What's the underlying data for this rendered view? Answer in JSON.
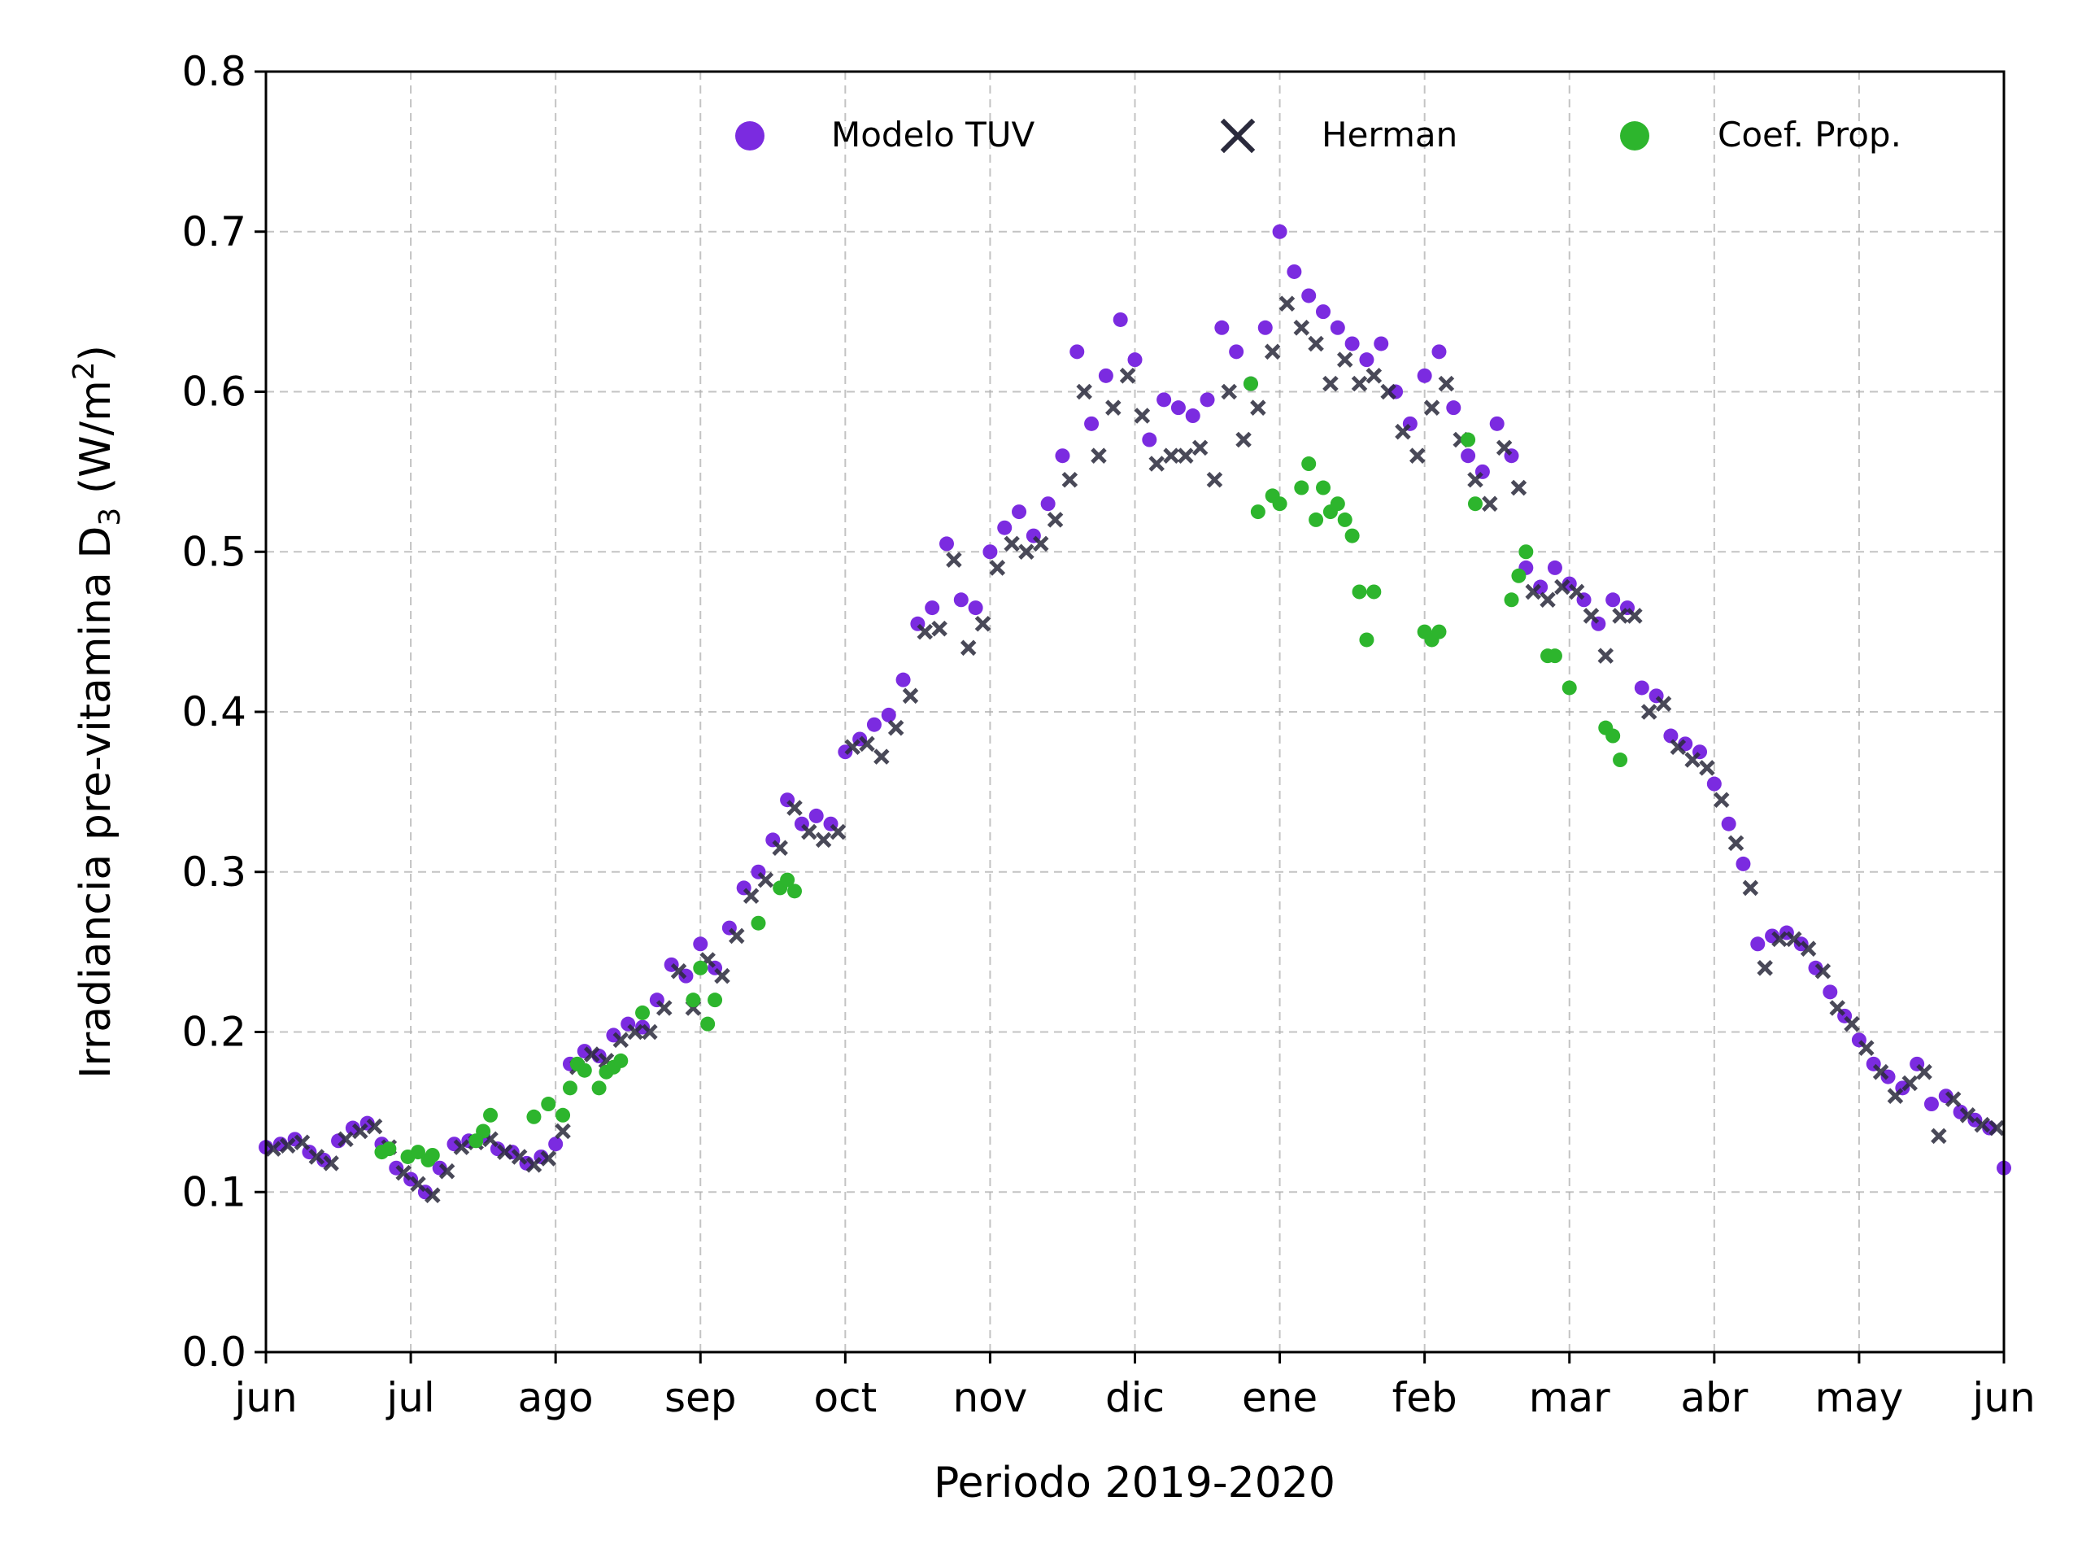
{
  "chart_data": {
    "type": "scatter",
    "xlabel": "Periodo 2019-2020",
    "ylabel": "Irradiancia pre-vitamina D3 (W/m2)",
    "ylabel_parts": {
      "main": "Irradiancia pre-vitamina D",
      "sub": "3",
      "unit_open": " (W/m",
      "sup": "2",
      "unit_close": ")"
    },
    "ylim": [
      0.0,
      0.8
    ],
    "yticks": [
      "0.0",
      "0.1",
      "0.2",
      "0.3",
      "0.4",
      "0.5",
      "0.6",
      "0.7",
      "0.8"
    ],
    "xlim": [
      0,
      12
    ],
    "xticks": [
      "jun",
      "jul",
      "ago",
      "sep",
      "oct",
      "nov",
      "dic",
      "ene",
      "feb",
      "mar",
      "abr",
      "may",
      "jun"
    ],
    "grid": true,
    "legend_position": "top-right",
    "series": [
      {
        "name": "Modelo TUV",
        "marker": "circle",
        "color": "#7b2be0",
        "points": [
          [
            0.0,
            0.128
          ],
          [
            0.1,
            0.13
          ],
          [
            0.2,
            0.133
          ],
          [
            0.3,
            0.125
          ],
          [
            0.4,
            0.12
          ],
          [
            0.5,
            0.132
          ],
          [
            0.6,
            0.14
          ],
          [
            0.7,
            0.143
          ],
          [
            0.8,
            0.13
          ],
          [
            0.9,
            0.115
          ],
          [
            1.0,
            0.108
          ],
          [
            1.1,
            0.1
          ],
          [
            1.2,
            0.115
          ],
          [
            1.3,
            0.13
          ],
          [
            1.4,
            0.132
          ],
          [
            1.5,
            0.135
          ],
          [
            1.6,
            0.127
          ],
          [
            1.7,
            0.125
          ],
          [
            1.8,
            0.118
          ],
          [
            1.9,
            0.122
          ],
          [
            2.0,
            0.13
          ],
          [
            2.1,
            0.18
          ],
          [
            2.2,
            0.188
          ],
          [
            2.3,
            0.185
          ],
          [
            2.4,
            0.198
          ],
          [
            2.5,
            0.205
          ],
          [
            2.6,
            0.203
          ],
          [
            2.7,
            0.22
          ],
          [
            2.8,
            0.242
          ],
          [
            2.9,
            0.235
          ],
          [
            3.0,
            0.255
          ],
          [
            3.1,
            0.24
          ],
          [
            3.2,
            0.265
          ],
          [
            3.3,
            0.29
          ],
          [
            3.4,
            0.3
          ],
          [
            3.5,
            0.32
          ],
          [
            3.6,
            0.345
          ],
          [
            3.7,
            0.33
          ],
          [
            3.8,
            0.335
          ],
          [
            3.9,
            0.33
          ],
          [
            4.0,
            0.375
          ],
          [
            4.1,
            0.383
          ],
          [
            4.2,
            0.392
          ],
          [
            4.3,
            0.398
          ],
          [
            4.4,
            0.42
          ],
          [
            4.5,
            0.455
          ],
          [
            4.6,
            0.465
          ],
          [
            4.7,
            0.505
          ],
          [
            4.8,
            0.47
          ],
          [
            4.9,
            0.465
          ],
          [
            5.0,
            0.5
          ],
          [
            5.1,
            0.515
          ],
          [
            5.2,
            0.525
          ],
          [
            5.3,
            0.51
          ],
          [
            5.4,
            0.53
          ],
          [
            5.5,
            0.56
          ],
          [
            5.6,
            0.625
          ],
          [
            5.7,
            0.58
          ],
          [
            5.8,
            0.61
          ],
          [
            5.9,
            0.645
          ],
          [
            6.0,
            0.62
          ],
          [
            6.1,
            0.57
          ],
          [
            6.2,
            0.595
          ],
          [
            6.3,
            0.59
          ],
          [
            6.4,
            0.585
          ],
          [
            6.5,
            0.595
          ],
          [
            6.6,
            0.64
          ],
          [
            6.7,
            0.625
          ],
          [
            6.8,
            0.605
          ],
          [
            6.9,
            0.64
          ],
          [
            7.0,
            0.7
          ],
          [
            7.1,
            0.675
          ],
          [
            7.2,
            0.66
          ],
          [
            7.3,
            0.65
          ],
          [
            7.4,
            0.64
          ],
          [
            7.5,
            0.63
          ],
          [
            7.6,
            0.62
          ],
          [
            7.7,
            0.63
          ],
          [
            7.8,
            0.6
          ],
          [
            7.9,
            0.58
          ],
          [
            8.0,
            0.61
          ],
          [
            8.1,
            0.625
          ],
          [
            8.2,
            0.59
          ],
          [
            8.3,
            0.56
          ],
          [
            8.4,
            0.55
          ],
          [
            8.5,
            0.58
          ],
          [
            8.6,
            0.56
          ],
          [
            8.7,
            0.49
          ],
          [
            8.8,
            0.478
          ],
          [
            8.9,
            0.49
          ],
          [
            9.0,
            0.48
          ],
          [
            9.1,
            0.47
          ],
          [
            9.2,
            0.455
          ],
          [
            9.3,
            0.47
          ],
          [
            9.4,
            0.465
          ],
          [
            9.5,
            0.415
          ],
          [
            9.6,
            0.41
          ],
          [
            9.7,
            0.385
          ],
          [
            9.8,
            0.38
          ],
          [
            9.9,
            0.375
          ],
          [
            10.0,
            0.355
          ],
          [
            10.1,
            0.33
          ],
          [
            10.2,
            0.305
          ],
          [
            10.3,
            0.255
          ],
          [
            10.4,
            0.26
          ],
          [
            10.5,
            0.262
          ],
          [
            10.6,
            0.255
          ],
          [
            10.7,
            0.24
          ],
          [
            10.8,
            0.225
          ],
          [
            10.9,
            0.21
          ],
          [
            11.0,
            0.195
          ],
          [
            11.1,
            0.18
          ],
          [
            11.2,
            0.172
          ],
          [
            11.3,
            0.165
          ],
          [
            11.4,
            0.18
          ],
          [
            11.5,
            0.155
          ],
          [
            11.6,
            0.16
          ],
          [
            11.7,
            0.15
          ],
          [
            11.8,
            0.145
          ],
          [
            11.9,
            0.14
          ],
          [
            12.0,
            0.115
          ]
        ]
      },
      {
        "name": "Herman",
        "marker": "x",
        "color": "#2a2a3c",
        "points": [
          [
            0.05,
            0.127
          ],
          [
            0.15,
            0.129
          ],
          [
            0.25,
            0.131
          ],
          [
            0.35,
            0.122
          ],
          [
            0.45,
            0.118
          ],
          [
            0.55,
            0.133
          ],
          [
            0.65,
            0.138
          ],
          [
            0.75,
            0.141
          ],
          [
            0.85,
            0.128
          ],
          [
            0.95,
            0.112
          ],
          [
            1.05,
            0.105
          ],
          [
            1.15,
            0.098
          ],
          [
            1.25,
            0.113
          ],
          [
            1.35,
            0.128
          ],
          [
            1.45,
            0.131
          ],
          [
            1.55,
            0.133
          ],
          [
            1.65,
            0.125
          ],
          [
            1.75,
            0.122
          ],
          [
            1.85,
            0.117
          ],
          [
            1.95,
            0.121
          ],
          [
            2.05,
            0.138
          ],
          [
            2.15,
            0.178
          ],
          [
            2.25,
            0.186
          ],
          [
            2.35,
            0.182
          ],
          [
            2.45,
            0.195
          ],
          [
            2.55,
            0.2
          ],
          [
            2.65,
            0.2
          ],
          [
            2.75,
            0.215
          ],
          [
            2.85,
            0.238
          ],
          [
            2.95,
            0.215
          ],
          [
            3.05,
            0.245
          ],
          [
            3.15,
            0.235
          ],
          [
            3.25,
            0.26
          ],
          [
            3.35,
            0.285
          ],
          [
            3.45,
            0.295
          ],
          [
            3.55,
            0.315
          ],
          [
            3.65,
            0.34
          ],
          [
            3.75,
            0.325
          ],
          [
            3.85,
            0.32
          ],
          [
            3.95,
            0.325
          ],
          [
            4.05,
            0.378
          ],
          [
            4.15,
            0.38
          ],
          [
            4.25,
            0.372
          ],
          [
            4.35,
            0.39
          ],
          [
            4.45,
            0.41
          ],
          [
            4.55,
            0.45
          ],
          [
            4.65,
            0.452
          ],
          [
            4.75,
            0.495
          ],
          [
            4.85,
            0.44
          ],
          [
            4.95,
            0.455
          ],
          [
            5.05,
            0.49
          ],
          [
            5.15,
            0.505
          ],
          [
            5.25,
            0.5
          ],
          [
            5.35,
            0.505
          ],
          [
            5.45,
            0.52
          ],
          [
            5.55,
            0.545
          ],
          [
            5.65,
            0.6
          ],
          [
            5.75,
            0.56
          ],
          [
            5.85,
            0.59
          ],
          [
            5.95,
            0.61
          ],
          [
            6.05,
            0.585
          ],
          [
            6.15,
            0.555
          ],
          [
            6.25,
            0.56
          ],
          [
            6.35,
            0.56
          ],
          [
            6.45,
            0.565
          ],
          [
            6.55,
            0.545
          ],
          [
            6.65,
            0.6
          ],
          [
            6.75,
            0.57
          ],
          [
            6.85,
            0.59
          ],
          [
            6.95,
            0.625
          ],
          [
            7.05,
            0.655
          ],
          [
            7.15,
            0.64
          ],
          [
            7.25,
            0.63
          ],
          [
            7.35,
            0.605
          ],
          [
            7.45,
            0.62
          ],
          [
            7.55,
            0.605
          ],
          [
            7.65,
            0.61
          ],
          [
            7.75,
            0.6
          ],
          [
            7.85,
            0.575
          ],
          [
            7.95,
            0.56
          ],
          [
            8.05,
            0.59
          ],
          [
            8.15,
            0.605
          ],
          [
            8.25,
            0.57
          ],
          [
            8.35,
            0.545
          ],
          [
            8.45,
            0.53
          ],
          [
            8.55,
            0.565
          ],
          [
            8.65,
            0.54
          ],
          [
            8.75,
            0.475
          ],
          [
            8.85,
            0.47
          ],
          [
            8.95,
            0.478
          ],
          [
            9.05,
            0.475
          ],
          [
            9.15,
            0.46
          ],
          [
            9.25,
            0.435
          ],
          [
            9.35,
            0.46
          ],
          [
            9.45,
            0.46
          ],
          [
            9.55,
            0.4
          ],
          [
            9.65,
            0.405
          ],
          [
            9.75,
            0.378
          ],
          [
            9.85,
            0.37
          ],
          [
            9.95,
            0.365
          ],
          [
            10.05,
            0.345
          ],
          [
            10.15,
            0.318
          ],
          [
            10.25,
            0.29
          ],
          [
            10.35,
            0.24
          ],
          [
            10.45,
            0.258
          ],
          [
            10.55,
            0.258
          ],
          [
            10.65,
            0.252
          ],
          [
            10.75,
            0.238
          ],
          [
            10.85,
            0.215
          ],
          [
            10.95,
            0.205
          ],
          [
            11.05,
            0.19
          ],
          [
            11.15,
            0.175
          ],
          [
            11.25,
            0.16
          ],
          [
            11.35,
            0.168
          ],
          [
            11.45,
            0.175
          ],
          [
            11.55,
            0.135
          ],
          [
            11.65,
            0.158
          ],
          [
            11.75,
            0.148
          ],
          [
            11.85,
            0.142
          ],
          [
            11.95,
            0.14
          ]
        ]
      },
      {
        "name": "Coef. Prop.",
        "marker": "circle",
        "color": "#2db52d",
        "points": [
          [
            0.8,
            0.125
          ],
          [
            0.85,
            0.127
          ],
          [
            0.98,
            0.122
          ],
          [
            1.05,
            0.125
          ],
          [
            1.12,
            0.12
          ],
          [
            1.15,
            0.123
          ],
          [
            1.45,
            0.132
          ],
          [
            1.5,
            0.138
          ],
          [
            1.55,
            0.148
          ],
          [
            1.85,
            0.147
          ],
          [
            1.95,
            0.155
          ],
          [
            2.05,
            0.148
          ],
          [
            2.1,
            0.165
          ],
          [
            2.15,
            0.18
          ],
          [
            2.2,
            0.176
          ],
          [
            2.3,
            0.165
          ],
          [
            2.35,
            0.175
          ],
          [
            2.4,
            0.178
          ],
          [
            2.45,
            0.182
          ],
          [
            2.6,
            0.212
          ],
          [
            2.95,
            0.22
          ],
          [
            3.0,
            0.24
          ],
          [
            3.05,
            0.205
          ],
          [
            3.1,
            0.22
          ],
          [
            3.4,
            0.268
          ],
          [
            3.55,
            0.29
          ],
          [
            3.6,
            0.295
          ],
          [
            3.65,
            0.288
          ],
          [
            6.8,
            0.605
          ],
          [
            6.85,
            0.525
          ],
          [
            6.95,
            0.535
          ],
          [
            7.0,
            0.53
          ],
          [
            7.15,
            0.54
          ],
          [
            7.2,
            0.555
          ],
          [
            7.25,
            0.52
          ],
          [
            7.3,
            0.54
          ],
          [
            7.35,
            0.525
          ],
          [
            7.4,
            0.53
          ],
          [
            7.45,
            0.52
          ],
          [
            7.5,
            0.51
          ],
          [
            7.55,
            0.475
          ],
          [
            7.6,
            0.445
          ],
          [
            7.65,
            0.475
          ],
          [
            8.0,
            0.45
          ],
          [
            8.05,
            0.445
          ],
          [
            8.1,
            0.45
          ],
          [
            8.3,
            0.57
          ],
          [
            8.35,
            0.53
          ],
          [
            8.6,
            0.47
          ],
          [
            8.65,
            0.485
          ],
          [
            8.7,
            0.5
          ],
          [
            8.85,
            0.435
          ],
          [
            8.9,
            0.435
          ],
          [
            9.0,
            0.415
          ],
          [
            9.25,
            0.39
          ],
          [
            9.3,
            0.385
          ],
          [
            9.35,
            0.37
          ]
        ]
      }
    ]
  }
}
